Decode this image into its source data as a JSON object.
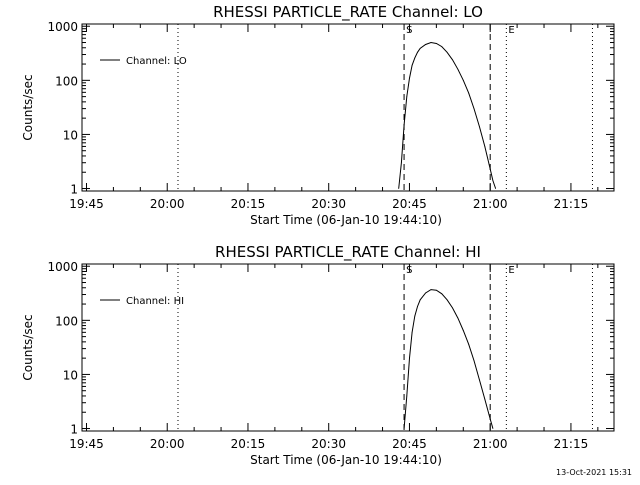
{
  "chart_data": [
    {
      "type": "line",
      "title": "RHESSI PARTICLE_RATE Channel: LO",
      "xlabel": "Start Time (06-Jan-10 19:44:10)",
      "ylabel": "Counts/sec",
      "y_scale": "log",
      "ylim": [
        0.9,
        1100
      ],
      "y_ticks": [
        "1",
        "10",
        "100",
        "1000"
      ],
      "xlim": [
        "19:44:10",
        "21:23:00"
      ],
      "x_ticks": [
        "19:45",
        "20:00",
        "20:15",
        "20:30",
        "20:45",
        "21:00",
        "21:15"
      ],
      "legend": {
        "placement": "top-left",
        "label": "Channel: LO"
      },
      "vlines": [
        {
          "time": "20:02:00",
          "style": "dotted",
          "label": ""
        },
        {
          "time": "20:44:00",
          "style": "dashed",
          "label": "S"
        },
        {
          "time": "21:00:00",
          "style": "dashed",
          "label": ""
        },
        {
          "time": "21:03:00",
          "style": "dotted",
          "label": "E"
        },
        {
          "time": "21:19:00",
          "style": "dotted",
          "label": ""
        }
      ],
      "series": [
        {
          "name": "Channel: LO",
          "x": [
            "20:43:00",
            "20:43:30",
            "20:44:00",
            "20:44:30",
            "20:45:00",
            "20:45:30",
            "20:46:00",
            "20:46:30",
            "20:47:00",
            "20:48:00",
            "20:49:00",
            "20:50:00",
            "20:51:00",
            "20:52:00",
            "20:53:00",
            "20:54:00",
            "20:55:00",
            "20:56:00",
            "20:57:00",
            "20:58:00",
            "20:59:00",
            "21:00:00",
            "21:00:30",
            "21:01:00"
          ],
          "y": [
            1,
            3,
            15,
            50,
            110,
            190,
            260,
            330,
            390,
            460,
            500,
            480,
            420,
            330,
            240,
            160,
            100,
            58,
            30,
            14,
            6,
            2.3,
            1.4,
            1
          ]
        }
      ]
    },
    {
      "type": "line",
      "title": "RHESSI PARTICLE_RATE Channel: HI",
      "xlabel": "Start Time (06-Jan-10 19:44:10)",
      "ylabel": "Counts/sec",
      "y_scale": "log",
      "ylim": [
        0.9,
        1100
      ],
      "y_ticks": [
        "1",
        "10",
        "100",
        "1000"
      ],
      "xlim": [
        "19:44:10",
        "21:23:00"
      ],
      "x_ticks": [
        "19:45",
        "20:00",
        "20:15",
        "20:30",
        "20:45",
        "21:00",
        "21:15"
      ],
      "legend": {
        "placement": "top-left",
        "label": "Channel: HI"
      },
      "vlines": [
        {
          "time": "20:02:00",
          "style": "dotted",
          "label": ""
        },
        {
          "time": "20:44:00",
          "style": "dashed",
          "label": "S"
        },
        {
          "time": "21:00:00",
          "style": "dashed",
          "label": ""
        },
        {
          "time": "21:03:00",
          "style": "dotted",
          "label": "E"
        },
        {
          "time": "21:19:00",
          "style": "dotted",
          "label": ""
        }
      ],
      "series": [
        {
          "name": "Channel: HI",
          "x": [
            "20:44:00",
            "20:44:30",
            "20:45:00",
            "20:45:30",
            "20:46:00",
            "20:46:30",
            "20:47:00",
            "20:48:00",
            "20:49:00",
            "20:50:00",
            "20:51:00",
            "20:52:00",
            "20:53:00",
            "20:54:00",
            "20:55:00",
            "20:56:00",
            "20:57:00",
            "20:58:00",
            "20:59:00",
            "21:00:00",
            "21:00:30"
          ],
          "y": [
            1,
            4,
            20,
            60,
            120,
            180,
            240,
            320,
            370,
            360,
            310,
            240,
            170,
            110,
            65,
            36,
            18,
            8,
            3.5,
            1.5,
            1
          ]
        }
      ]
    }
  ],
  "footer": {
    "timestamp": "13-Oct-2021 15:31"
  },
  "colors": {
    "background": "#ffffff",
    "ink": "#000000"
  }
}
